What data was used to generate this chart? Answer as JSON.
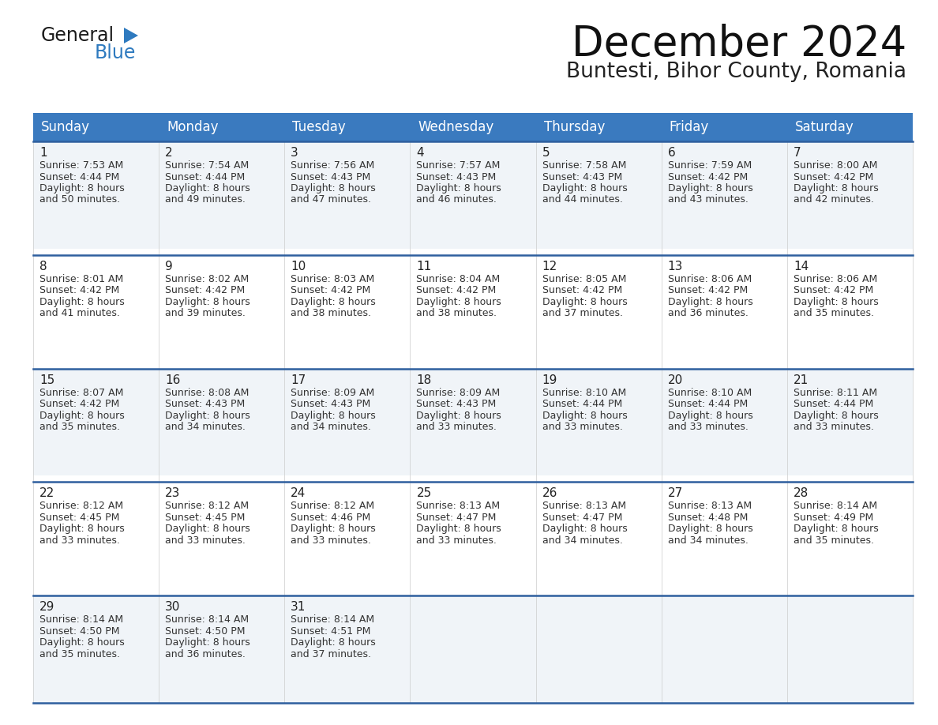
{
  "title": "December 2024",
  "subtitle": "Buntesti, Bihor County, Romania",
  "header_color": "#3a7abf",
  "header_text_color": "#ffffff",
  "days_of_week": [
    "Sunday",
    "Monday",
    "Tuesday",
    "Wednesday",
    "Thursday",
    "Friday",
    "Saturday"
  ],
  "bg_color": "#ffffff",
  "cell_bg_light": "#f0f4f8",
  "cell_bg_white": "#ffffff",
  "separator_color": "#2e5f9e",
  "text_color": "#333333",
  "logo_black": "#111111",
  "logo_blue": "#2e7abf",
  "calendar_data": [
    {
      "day": 1,
      "col": 0,
      "row": 0,
      "sunrise": "7:53 AM",
      "sunset": "4:44 PM",
      "daylight": "8 hours and 50 minutes."
    },
    {
      "day": 2,
      "col": 1,
      "row": 0,
      "sunrise": "7:54 AM",
      "sunset": "4:44 PM",
      "daylight": "8 hours and 49 minutes."
    },
    {
      "day": 3,
      "col": 2,
      "row": 0,
      "sunrise": "7:56 AM",
      "sunset": "4:43 PM",
      "daylight": "8 hours and 47 minutes."
    },
    {
      "day": 4,
      "col": 3,
      "row": 0,
      "sunrise": "7:57 AM",
      "sunset": "4:43 PM",
      "daylight": "8 hours and 46 minutes."
    },
    {
      "day": 5,
      "col": 4,
      "row": 0,
      "sunrise": "7:58 AM",
      "sunset": "4:43 PM",
      "daylight": "8 hours and 44 minutes."
    },
    {
      "day": 6,
      "col": 5,
      "row": 0,
      "sunrise": "7:59 AM",
      "sunset": "4:42 PM",
      "daylight": "8 hours and 43 minutes."
    },
    {
      "day": 7,
      "col": 6,
      "row": 0,
      "sunrise": "8:00 AM",
      "sunset": "4:42 PM",
      "daylight": "8 hours and 42 minutes."
    },
    {
      "day": 8,
      "col": 0,
      "row": 1,
      "sunrise": "8:01 AM",
      "sunset": "4:42 PM",
      "daylight": "8 hours and 41 minutes."
    },
    {
      "day": 9,
      "col": 1,
      "row": 1,
      "sunrise": "8:02 AM",
      "sunset": "4:42 PM",
      "daylight": "8 hours and 39 minutes."
    },
    {
      "day": 10,
      "col": 2,
      "row": 1,
      "sunrise": "8:03 AM",
      "sunset": "4:42 PM",
      "daylight": "8 hours and 38 minutes."
    },
    {
      "day": 11,
      "col": 3,
      "row": 1,
      "sunrise": "8:04 AM",
      "sunset": "4:42 PM",
      "daylight": "8 hours and 38 minutes."
    },
    {
      "day": 12,
      "col": 4,
      "row": 1,
      "sunrise": "8:05 AM",
      "sunset": "4:42 PM",
      "daylight": "8 hours and 37 minutes."
    },
    {
      "day": 13,
      "col": 5,
      "row": 1,
      "sunrise": "8:06 AM",
      "sunset": "4:42 PM",
      "daylight": "8 hours and 36 minutes."
    },
    {
      "day": 14,
      "col": 6,
      "row": 1,
      "sunrise": "8:06 AM",
      "sunset": "4:42 PM",
      "daylight": "8 hours and 35 minutes."
    },
    {
      "day": 15,
      "col": 0,
      "row": 2,
      "sunrise": "8:07 AM",
      "sunset": "4:42 PM",
      "daylight": "8 hours and 35 minutes."
    },
    {
      "day": 16,
      "col": 1,
      "row": 2,
      "sunrise": "8:08 AM",
      "sunset": "4:43 PM",
      "daylight": "8 hours and 34 minutes."
    },
    {
      "day": 17,
      "col": 2,
      "row": 2,
      "sunrise": "8:09 AM",
      "sunset": "4:43 PM",
      "daylight": "8 hours and 34 minutes."
    },
    {
      "day": 18,
      "col": 3,
      "row": 2,
      "sunrise": "8:09 AM",
      "sunset": "4:43 PM",
      "daylight": "8 hours and 33 minutes."
    },
    {
      "day": 19,
      "col": 4,
      "row": 2,
      "sunrise": "8:10 AM",
      "sunset": "4:44 PM",
      "daylight": "8 hours and 33 minutes."
    },
    {
      "day": 20,
      "col": 5,
      "row": 2,
      "sunrise": "8:10 AM",
      "sunset": "4:44 PM",
      "daylight": "8 hours and 33 minutes."
    },
    {
      "day": 21,
      "col": 6,
      "row": 2,
      "sunrise": "8:11 AM",
      "sunset": "4:44 PM",
      "daylight": "8 hours and 33 minutes."
    },
    {
      "day": 22,
      "col": 0,
      "row": 3,
      "sunrise": "8:12 AM",
      "sunset": "4:45 PM",
      "daylight": "8 hours and 33 minutes."
    },
    {
      "day": 23,
      "col": 1,
      "row": 3,
      "sunrise": "8:12 AM",
      "sunset": "4:45 PM",
      "daylight": "8 hours and 33 minutes."
    },
    {
      "day": 24,
      "col": 2,
      "row": 3,
      "sunrise": "8:12 AM",
      "sunset": "4:46 PM",
      "daylight": "8 hours and 33 minutes."
    },
    {
      "day": 25,
      "col": 3,
      "row": 3,
      "sunrise": "8:13 AM",
      "sunset": "4:47 PM",
      "daylight": "8 hours and 33 minutes."
    },
    {
      "day": 26,
      "col": 4,
      "row": 3,
      "sunrise": "8:13 AM",
      "sunset": "4:47 PM",
      "daylight": "8 hours and 34 minutes."
    },
    {
      "day": 27,
      "col": 5,
      "row": 3,
      "sunrise": "8:13 AM",
      "sunset": "4:48 PM",
      "daylight": "8 hours and 34 minutes."
    },
    {
      "day": 28,
      "col": 6,
      "row": 3,
      "sunrise": "8:14 AM",
      "sunset": "4:49 PM",
      "daylight": "8 hours and 35 minutes."
    },
    {
      "day": 29,
      "col": 0,
      "row": 4,
      "sunrise": "8:14 AM",
      "sunset": "4:50 PM",
      "daylight": "8 hours and 35 minutes."
    },
    {
      "day": 30,
      "col": 1,
      "row": 4,
      "sunrise": "8:14 AM",
      "sunset": "4:50 PM",
      "daylight": "8 hours and 36 minutes."
    },
    {
      "day": 31,
      "col": 2,
      "row": 4,
      "sunrise": "8:14 AM",
      "sunset": "4:51 PM",
      "daylight": "8 hours and 37 minutes."
    }
  ]
}
